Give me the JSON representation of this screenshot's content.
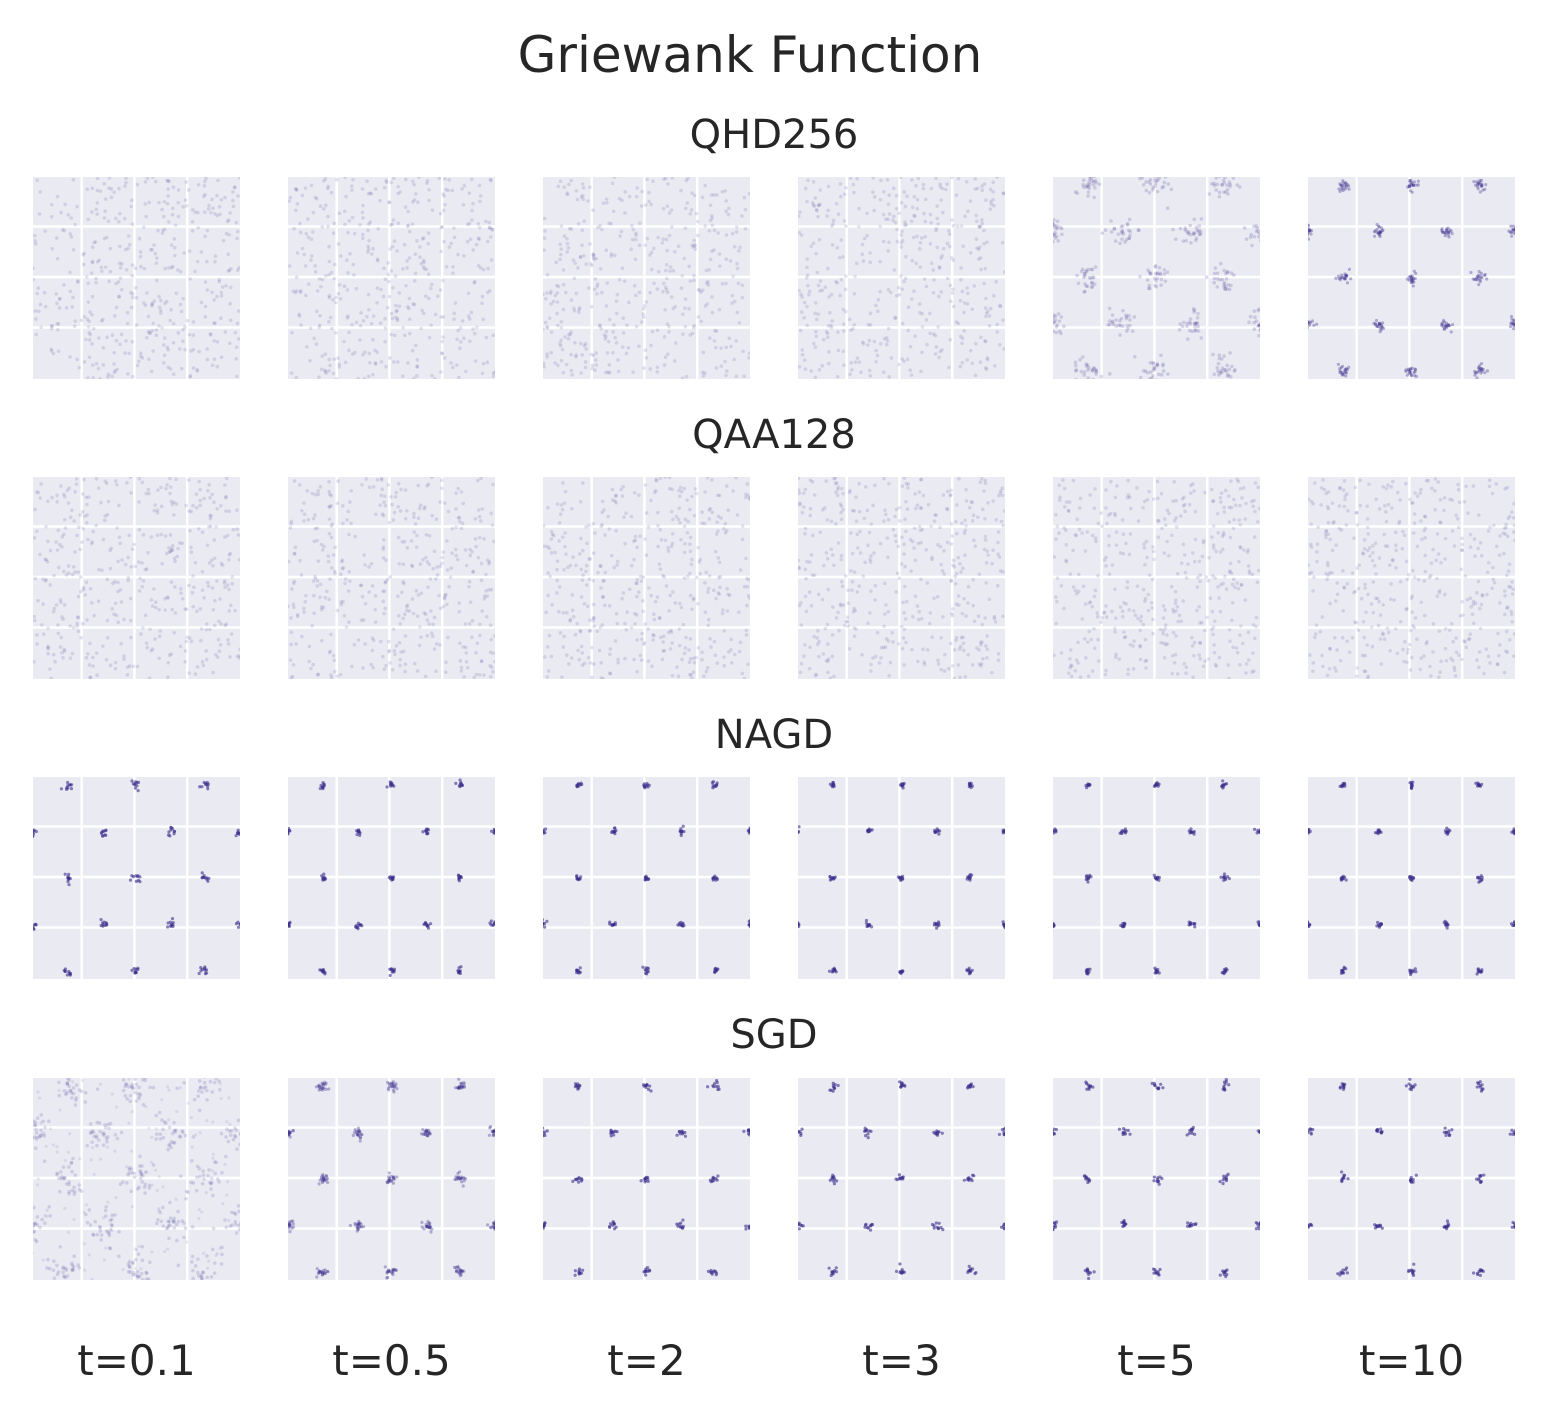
{
  "chart_data": {
    "type": "scatter",
    "title": "Griewank Function",
    "xlabel": "",
    "ylabel": "",
    "grid": true,
    "background": "#eaeaf2",
    "grid_color": "#ffffff",
    "marker_color": "#3b2f8c",
    "times": [
      "t=0.1",
      "t=0.5",
      "t=2",
      "t=3",
      "t=5",
      "t=10"
    ],
    "methods": [
      {
        "name": "QHD256",
        "panels": [
          {
            "distribution": "uniform",
            "spread": 0
          },
          {
            "distribution": "uniform",
            "spread": 0
          },
          {
            "distribution": "uniform",
            "spread": 0
          },
          {
            "distribution": "uniform",
            "spread": 0
          },
          {
            "distribution": "clustered",
            "spread": 0.35
          },
          {
            "distribution": "clustered",
            "spread": 0.1
          }
        ]
      },
      {
        "name": "QAA128",
        "panels": [
          {
            "distribution": "uniform",
            "spread": 0
          },
          {
            "distribution": "uniform",
            "spread": 0
          },
          {
            "distribution": "uniform",
            "spread": 0
          },
          {
            "distribution": "uniform",
            "spread": 0
          },
          {
            "distribution": "uniform",
            "spread": 0
          },
          {
            "distribution": "uniform",
            "spread": 0
          }
        ]
      },
      {
        "name": "NAGD",
        "panels": [
          {
            "distribution": "clustered",
            "spread": 0.05
          },
          {
            "distribution": "clustered",
            "spread": 0.0
          },
          {
            "distribution": "clustered",
            "spread": 0.0
          },
          {
            "distribution": "clustered",
            "spread": 0.0
          },
          {
            "distribution": "clustered",
            "spread": 0.0
          },
          {
            "distribution": "clustered",
            "spread": 0.0
          }
        ]
      },
      {
        "name": "SGD",
        "panels": [
          {
            "distribution": "diffuse-clusters",
            "spread": 0.6
          },
          {
            "distribution": "clustered",
            "spread": 0.07
          },
          {
            "distribution": "clustered",
            "spread": 0.05
          },
          {
            "distribution": "clustered",
            "spread": 0.05
          },
          {
            "distribution": "clustered",
            "spread": 0.05
          },
          {
            "distribution": "clustered",
            "spread": 0.05
          }
        ]
      }
    ],
    "cluster_centers_description": "local minima of the Griewank function arranged in an offset lattice"
  }
}
